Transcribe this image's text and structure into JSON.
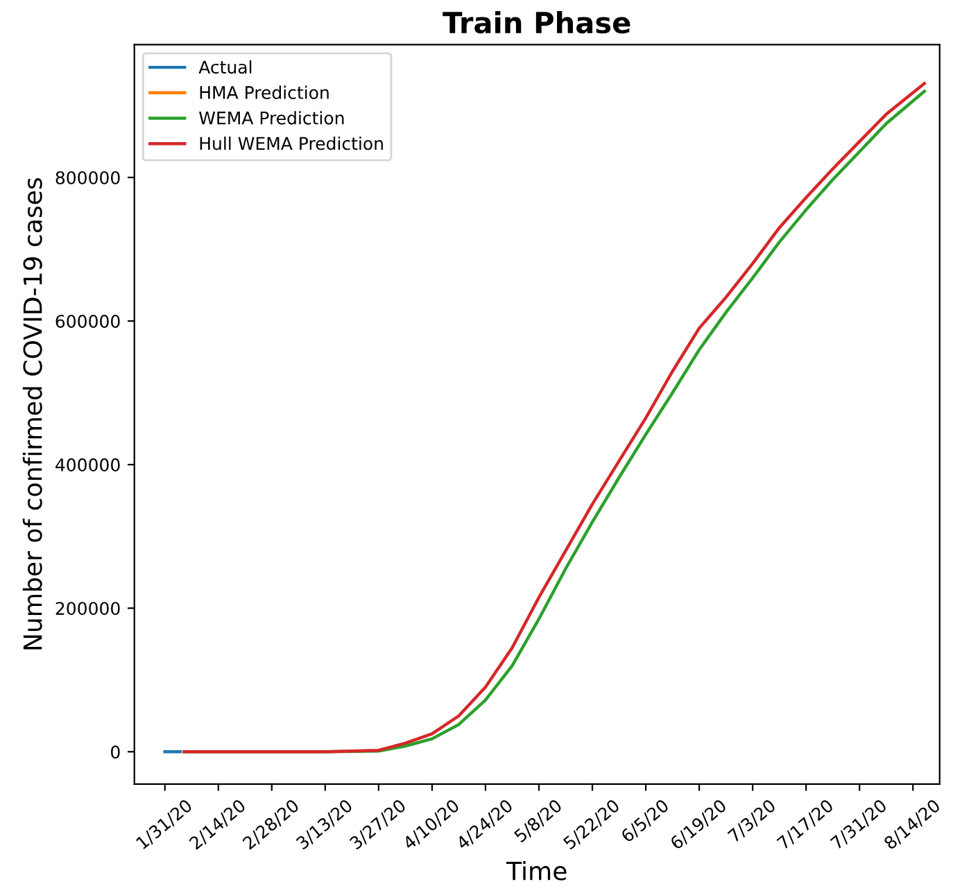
{
  "chart_data": {
    "type": "line",
    "title": "Train Phase",
    "xlabel": "Time",
    "ylabel": "Number of confirmed COVID-19 cases",
    "xlim": [
      "2020-01-23",
      "2020-08-21"
    ],
    "ylim": [
      -45000,
      985000
    ],
    "xticks": [
      {
        "value": "2020-01-31",
        "label": "1/31/20"
      },
      {
        "value": "2020-02-14",
        "label": "2/14/20"
      },
      {
        "value": "2020-02-28",
        "label": "2/28/20"
      },
      {
        "value": "2020-03-13",
        "label": "3/13/20"
      },
      {
        "value": "2020-03-27",
        "label": "3/27/20"
      },
      {
        "value": "2020-04-10",
        "label": "4/10/20"
      },
      {
        "value": "2020-04-24",
        "label": "4/24/20"
      },
      {
        "value": "2020-05-08",
        "label": "5/8/20"
      },
      {
        "value": "2020-05-22",
        "label": "5/22/20"
      },
      {
        "value": "2020-06-05",
        "label": "6/5/20"
      },
      {
        "value": "2020-06-19",
        "label": "6/19/20"
      },
      {
        "value": "2020-07-03",
        "label": "7/3/20"
      },
      {
        "value": "2020-07-17",
        "label": "7/17/20"
      },
      {
        "value": "2020-07-31",
        "label": "7/31/20"
      },
      {
        "value": "2020-08-14",
        "label": "8/14/20"
      }
    ],
    "yticks": [
      0,
      200000,
      400000,
      600000,
      800000
    ],
    "grid": false,
    "legend": "top left",
    "line_style": "solid",
    "marker": "none",
    "series": [
      {
        "name": "Actual",
        "color": "#1f77b4",
        "x": [
          "2020-01-31",
          "2020-02-04"
        ],
        "values": [
          0,
          0
        ]
      },
      {
        "name": "HMA Prediction",
        "color": "#ff7f0e"
      },
      {
        "name": "WEMA Prediction",
        "color": "#2ca02c",
        "x": [
          "2020-02-05",
          "2020-03-13",
          "2020-03-27",
          "2020-04-03",
          "2020-04-10",
          "2020-04-17",
          "2020-04-24",
          "2020-05-01",
          "2020-05-08",
          "2020-05-15",
          "2020-05-22",
          "2020-05-29",
          "2020-06-05",
          "2020-06-12",
          "2020-06-19",
          "2020-06-26",
          "2020-07-03",
          "2020-07-10",
          "2020-07-17",
          "2020-07-24",
          "2020-07-31",
          "2020-08-07",
          "2020-08-17"
        ],
        "values": [
          0,
          0,
          1000,
          8000,
          18000,
          38000,
          72000,
          120000,
          185000,
          255000,
          320000,
          382000,
          442000,
          500000,
          560000,
          612000,
          660000,
          710000,
          755000,
          797000,
          836000,
          875000,
          920000
        ]
      },
      {
        "name": "Hull WEMA Prediction",
        "color": "#d62728",
        "x": [
          "2020-02-05",
          "2020-03-13",
          "2020-03-27",
          "2020-04-03",
          "2020-04-10",
          "2020-04-17",
          "2020-04-24",
          "2020-05-01",
          "2020-05-08",
          "2020-05-15",
          "2020-05-22",
          "2020-05-29",
          "2020-06-05",
          "2020-06-12",
          "2020-06-19",
          "2020-06-26",
          "2020-07-03",
          "2020-07-10",
          "2020-07-17",
          "2020-07-24",
          "2020-07-31",
          "2020-08-07",
          "2020-08-17"
        ],
        "values": [
          0,
          0,
          2000,
          12000,
          25000,
          50000,
          90000,
          145000,
          215000,
          280000,
          345000,
          405000,
          465000,
          530000,
          590000,
          633000,
          680000,
          730000,
          772000,
          812000,
          850000,
          888000,
          931000
        ]
      }
    ]
  }
}
